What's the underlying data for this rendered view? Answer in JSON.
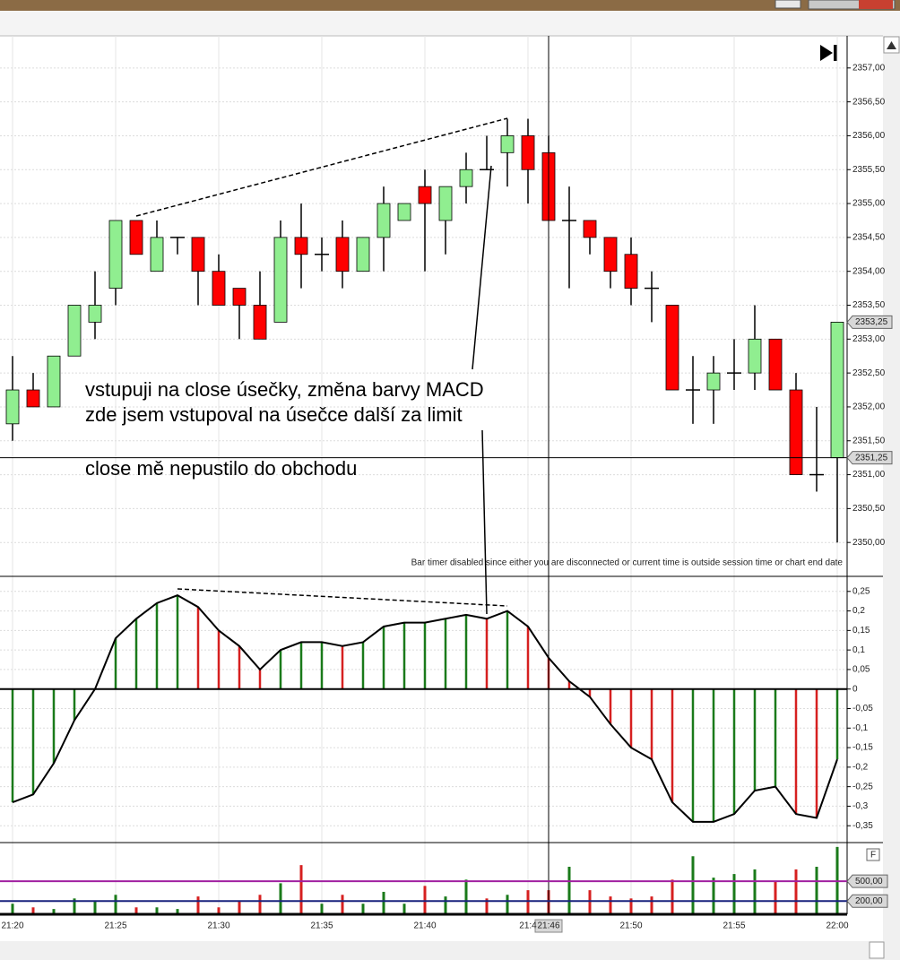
{
  "chart_data": [
    {
      "type": "candlestick",
      "open": [
        2351.75,
        2352.25,
        2352.0,
        2352.75,
        2353.25,
        2353.75,
        2354.75,
        2354.0,
        2354.5,
        2354.5,
        2354.0,
        2353.75,
        2353.5,
        2353.25,
        2354.5,
        2354.25,
        2354.5,
        2354.0,
        2354.5,
        2354.75,
        2355.25,
        2354.75,
        2355.25,
        2355.5,
        2355.75,
        2356.0,
        2355.75,
        2354.75,
        2354.75,
        2354.5,
        2354.25,
        2353.75,
        2353.5,
        2352.25,
        2352.25,
        2352.5,
        2352.5,
        2353.0,
        2352.25,
        2351.0,
        2351.25
      ],
      "high": [
        2352.75,
        2352.5,
        2352.75,
        2353.5,
        2354.0,
        2354.75,
        2354.75,
        2354.75,
        2354.5,
        2354.5,
        2354.25,
        2353.75,
        2354.0,
        2354.75,
        2355.0,
        2354.5,
        2354.75,
        2354.5,
        2355.25,
        2355.0,
        2355.5,
        2355.25,
        2355.75,
        2356.0,
        2356.25,
        2356.25,
        2356.0,
        2355.25,
        2354.75,
        2354.5,
        2354.5,
        2354.0,
        2353.5,
        2352.75,
        2352.75,
        2353.0,
        2353.5,
        2353.0,
        2352.5,
        2352.0,
        2353.25
      ],
      "low": [
        2351.5,
        2352.0,
        2352.0,
        2352.75,
        2353.0,
        2353.5,
        2354.25,
        2354.0,
        2354.25,
        2353.5,
        2353.5,
        2353.0,
        2353.0,
        2353.25,
        2353.75,
        2354.0,
        2353.75,
        2354.0,
        2354.0,
        2354.75,
        2354.0,
        2354.25,
        2355.0,
        2355.5,
        2355.25,
        2355.0,
        2354.75,
        2353.75,
        2354.25,
        2353.75,
        2353.5,
        2353.25,
        2352.25,
        2351.75,
        2351.75,
        2352.25,
        2352.25,
        2352.25,
        2351.0,
        2350.75,
        2350.0
      ],
      "close": [
        2352.25,
        2352.0,
        2352.75,
        2353.5,
        2353.5,
        2354.75,
        2354.25,
        2354.5,
        2354.5,
        2354.0,
        2353.5,
        2353.5,
        2353.0,
        2354.5,
        2354.25,
        2354.25,
        2354.0,
        2354.5,
        2355.0,
        2355.0,
        2355.0,
        2355.25,
        2355.5,
        2355.5,
        2356.0,
        2355.5,
        2354.75,
        2354.75,
        2354.5,
        2354.0,
        2353.75,
        2353.75,
        2352.25,
        2352.25,
        2352.5,
        2352.5,
        2353.0,
        2352.25,
        2351.0,
        2351.0,
        2353.25
      ],
      "up_color": "#90ee90",
      "down_color": "#ff0000",
      "ylim": [
        2349.5,
        2357.5
      ],
      "yticks": [
        {
          "value": 2350,
          "label": "2350,00"
        },
        {
          "value": 2350.5,
          "label": "2350,50"
        },
        {
          "value": 2351,
          "label": "2351,00"
        },
        {
          "value": 2351.5,
          "label": "2351,50"
        },
        {
          "value": 2352,
          "label": "2352,00"
        },
        {
          "value": 2352.5,
          "label": "2352,50"
        },
        {
          "value": 2353,
          "label": "2353,00"
        },
        {
          "value": 2353.5,
          "label": "2353,50"
        },
        {
          "value": 2354,
          "label": "2354,00"
        },
        {
          "value": 2354.5,
          "label": "2354,50"
        },
        {
          "value": 2355,
          "label": "2355,00"
        },
        {
          "value": 2355.5,
          "label": "2355,50"
        },
        {
          "value": 2356,
          "label": "2356,00"
        },
        {
          "value": 2356.5,
          "label": "2356,50"
        },
        {
          "value": 2357,
          "label": "2357,00"
        }
      ],
      "grid": true,
      "price_markers": [
        {
          "value": 2353.25,
          "label": "2353,25"
        }
      ],
      "crosshair": {
        "x": "21:46",
        "y": 2351.25,
        "y_label": "2351,25"
      },
      "annotations": [
        "vstupuji na close úsečky, změna barvy MACD",
        "zde jsem vstupoval na úsečce další za limit",
        "close mě nepustilo do obchodu"
      ],
      "notice": "Bar timer disabled since either you are disconnected or current time is outside session time or chart end date"
    },
    {
      "type": "macd",
      "values": [
        -0.29,
        -0.27,
        -0.19,
        -0.08,
        0.0,
        0.13,
        0.18,
        0.22,
        0.24,
        0.21,
        0.15,
        0.11,
        0.05,
        0.1,
        0.12,
        0.12,
        0.11,
        0.12,
        0.16,
        0.17,
        0.17,
        0.18,
        0.19,
        0.18,
        0.2,
        0.16,
        0.08,
        0.02,
        -0.02,
        -0.09,
        -0.15,
        -0.18,
        -0.29,
        -0.34,
        -0.34,
        -0.32,
        -0.26,
        -0.25,
        -0.32,
        -0.33,
        -0.18
      ],
      "colors": [
        "#1a7a1a",
        "#1a7a1a",
        "#1a7a1a",
        "#1a7a1a",
        "#1a7a1a",
        "#1a7a1a",
        "#1a7a1a",
        "#1a7a1a",
        "#1a7a1a",
        "#d62020",
        "#d62020",
        "#d62020",
        "#d62020",
        "#1a7a1a",
        "#1a7a1a",
        "#1a7a1a",
        "#d62020",
        "#1a7a1a",
        "#1a7a1a",
        "#1a7a1a",
        "#1a7a1a",
        "#1a7a1a",
        "#1a7a1a",
        "#d62020",
        "#1a7a1a",
        "#d62020",
        "#d62020",
        "#d62020",
        "#d62020",
        "#d62020",
        "#d62020",
        "#d62020",
        "#d62020",
        "#1a7a1a",
        "#1a7a1a",
        "#1a7a1a",
        "#1a7a1a",
        "#1a7a1a",
        "#d62020",
        "#d62020",
        "#1a7a1a"
      ],
      "line_color": "#000000",
      "ylim": [
        -0.4,
        0.3
      ],
      "yticks": [
        {
          "value": 0.25,
          "label": "0,25"
        },
        {
          "value": 0.2,
          "label": "0,2"
        },
        {
          "value": 0.15,
          "label": "0,15"
        },
        {
          "value": 0.1,
          "label": "0,1"
        },
        {
          "value": 0.05,
          "label": "0,05"
        },
        0,
        {
          "value": -0.05,
          "label": "-0,05"
        },
        {
          "value": -0.1,
          "label": "-0,1"
        },
        {
          "value": -0.15,
          "label": "-0,15"
        },
        {
          "value": -0.2,
          "label": "-0,2"
        },
        {
          "value": -0.25,
          "label": "-0,25"
        },
        {
          "value": -0.3,
          "label": "-0,3"
        },
        {
          "value": -0.35,
          "label": "-0,35"
        }
      ],
      "grid": true
    },
    {
      "type": "bar",
      "categories": [
        "21:20",
        null,
        null,
        null,
        null,
        "21:25",
        null,
        null,
        null,
        null,
        "21:30",
        null,
        null,
        null,
        null,
        "21:35",
        null,
        null,
        null,
        null,
        "21:40",
        null,
        null,
        null,
        null,
        "21:4",
        null,
        null,
        null,
        null,
        "21:50",
        null,
        null,
        null,
        null,
        "21:55",
        null,
        null,
        null,
        null,
        "22:00"
      ],
      "values": [
        160,
        105,
        80,
        240,
        200,
        295,
        105,
        105,
        80,
        270,
        105,
        200,
        295,
        470,
        745,
        160,
        295,
        160,
        340,
        160,
        430,
        270,
        525,
        240,
        295,
        365,
        365,
        720,
        365,
        270,
        240,
        270,
        525,
        880,
        555,
        610,
        680,
        500,
        680,
        720,
        1020
      ],
      "colors": [
        "#1a7a1a",
        "#d62020",
        "#1a7a1a",
        "#1a7a1a",
        "#1a7a1a",
        "#1a7a1a",
        "#d62020",
        "#1a7a1a",
        "#1a7a1a",
        "#d62020",
        "#d62020",
        "#d62020",
        "#d62020",
        "#1a7a1a",
        "#d62020",
        "#1a7a1a",
        "#d62020",
        "#1a7a1a",
        "#1a7a1a",
        "#1a7a1a",
        "#d62020",
        "#1a7a1a",
        "#1a7a1a",
        "#d62020",
        "#1a7a1a",
        "#d62020",
        "#d62020",
        "#1a7a1a",
        "#d62020",
        "#d62020",
        "#d62020",
        "#d62020",
        "#d62020",
        "#1a7a1a",
        "#1a7a1a",
        "#1a7a1a",
        "#1a7a1a",
        "#d62020",
        "#d62020",
        "#1a7a1a",
        "#1a7a1a"
      ],
      "ylim": [
        0,
        1100
      ],
      "reference_lines": [
        {
          "value": 500,
          "label": "500,00",
          "color": "#a020a0"
        },
        {
          "value": 200,
          "label": "200,00",
          "color": "#1a237e"
        }
      ]
    }
  ]
}
